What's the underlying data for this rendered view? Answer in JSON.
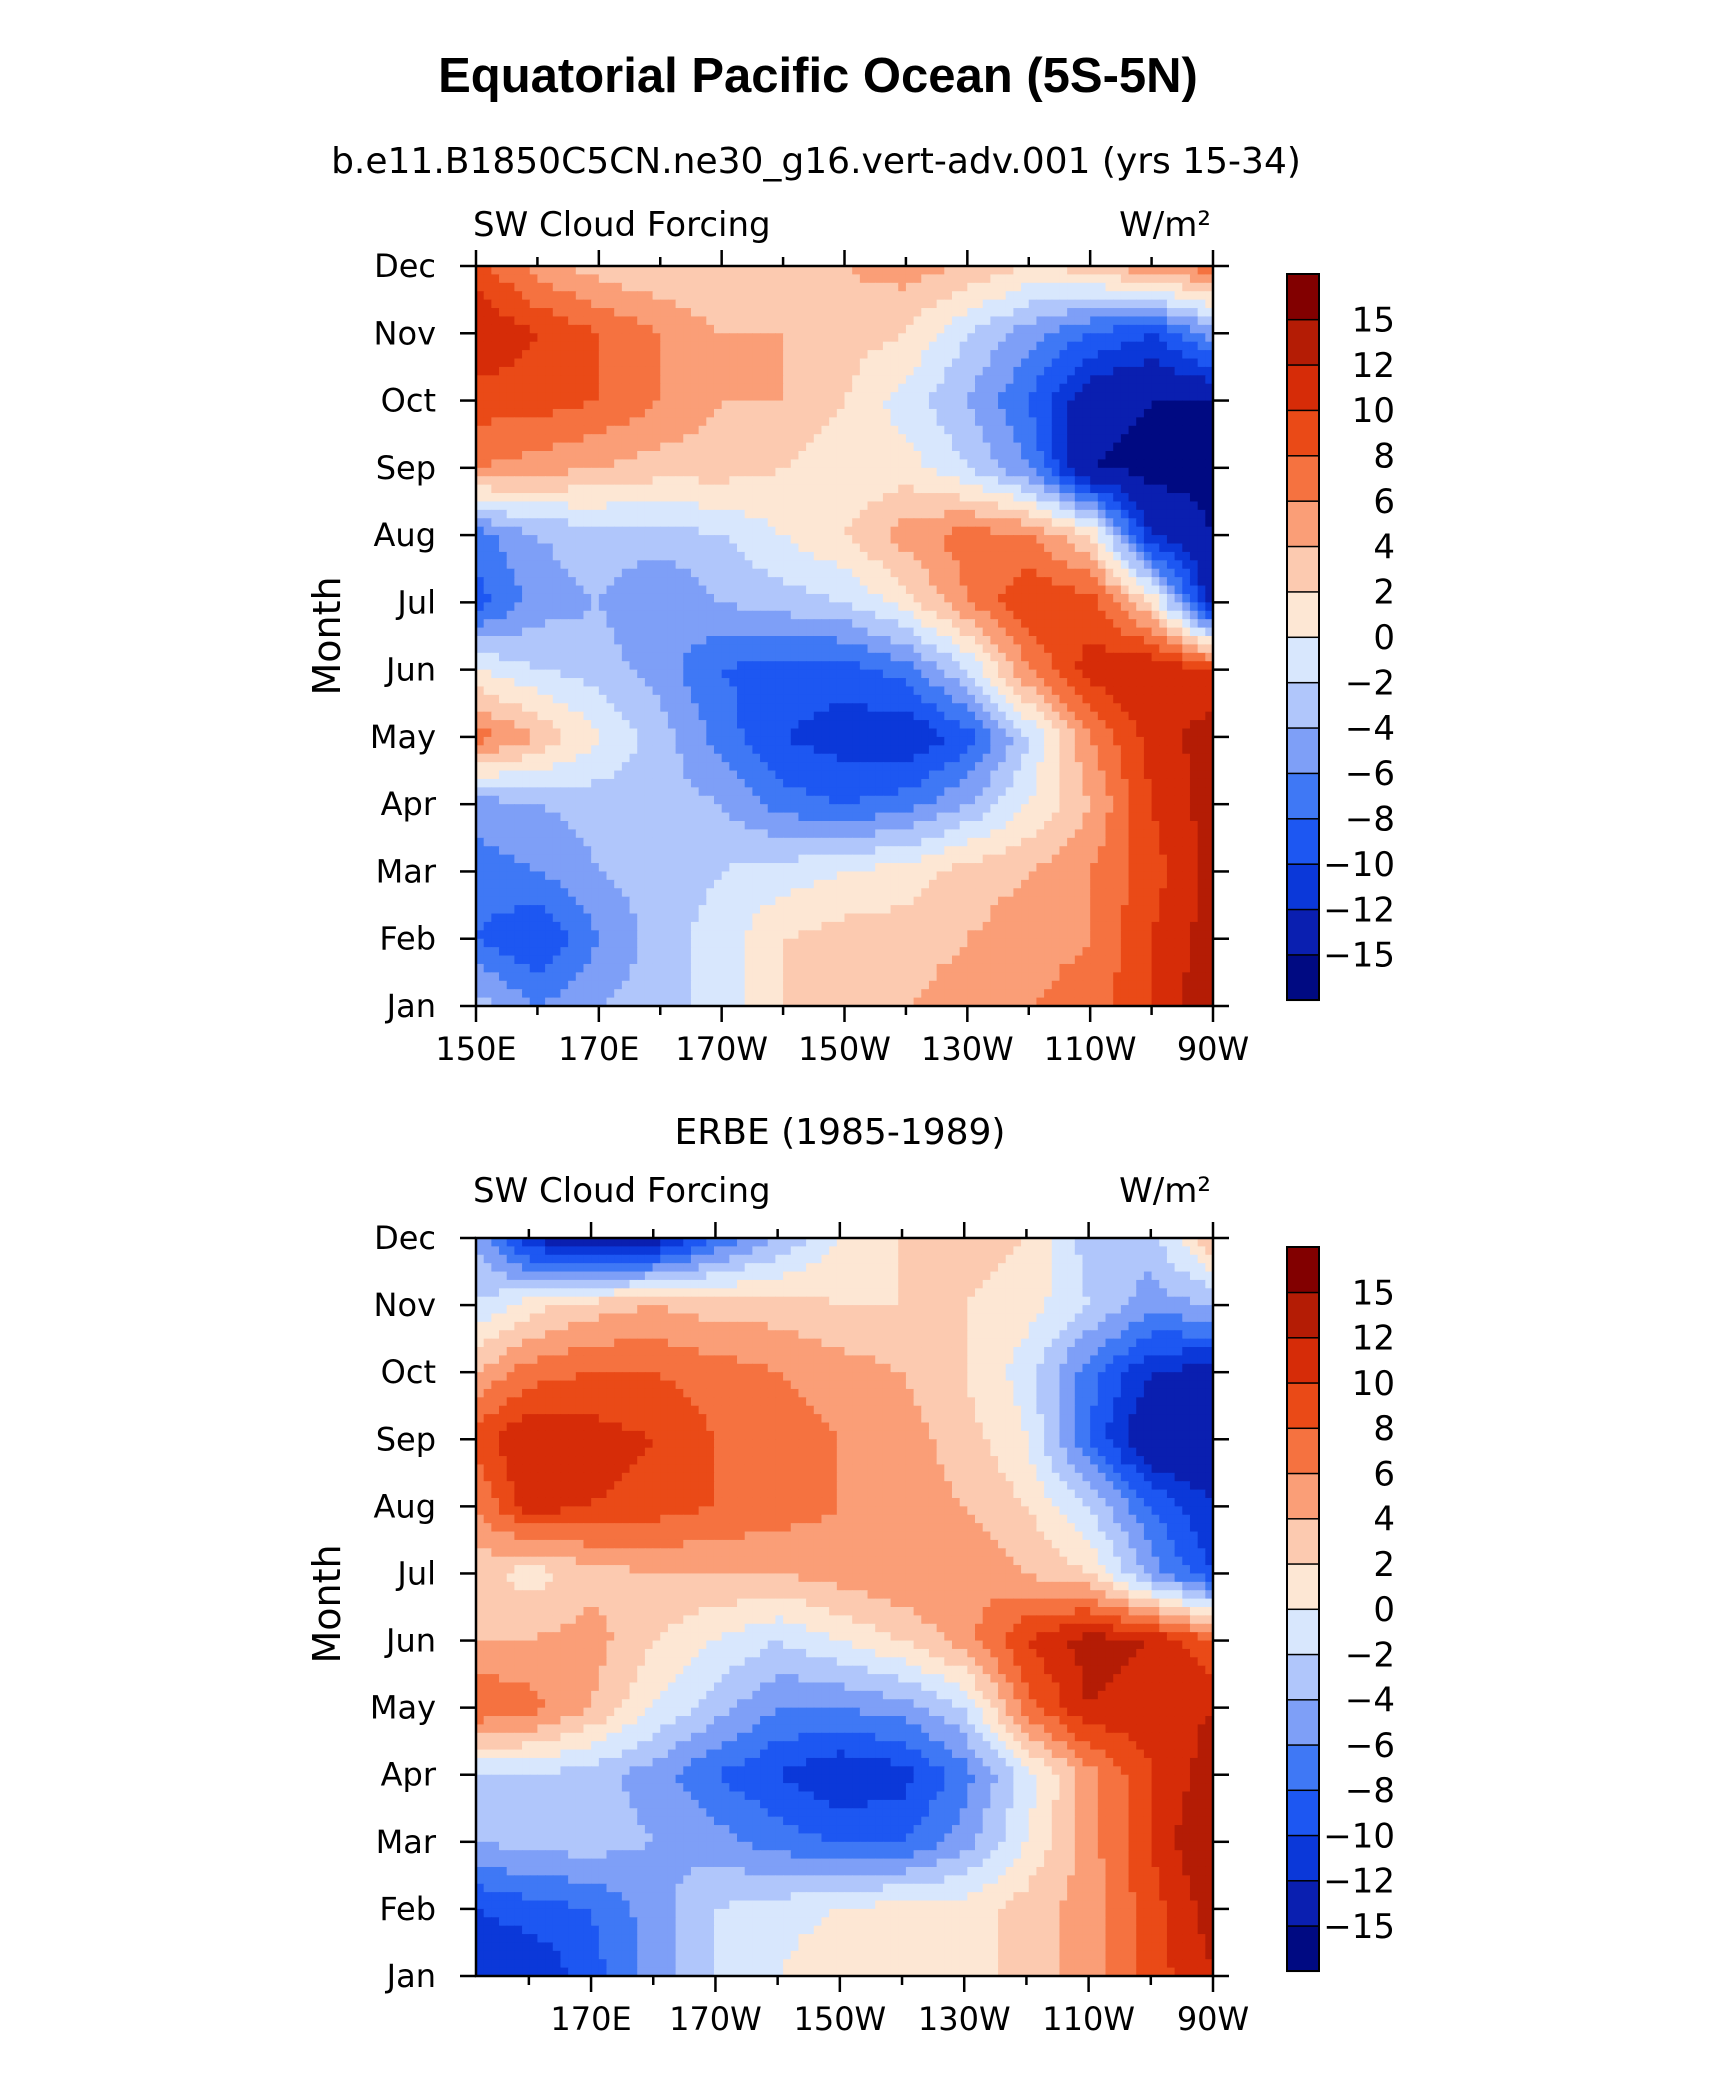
{
  "figure": {
    "title": "Equatorial Pacific Ocean (5S-5N)"
  },
  "palette": {
    "levels": [
      "-15",
      "-12",
      "-10",
      "-8",
      "-6",
      "-4",
      "-2",
      "0",
      "2",
      "4",
      "6",
      "8",
      "10",
      "12",
      "15"
    ],
    "colors": [
      "#000a82",
      "#0a1fb0",
      "#0b38d9",
      "#1d57f2",
      "#3f78f5",
      "#7e9ff7",
      "#b0c6fb",
      "#d8e7fd",
      "#fde7d4",
      "#fccab0",
      "#fa9e77",
      "#f57240",
      "#ea4a17",
      "#d62c08",
      "#b41c05",
      "#820000"
    ]
  },
  "chart_data": [
    {
      "type": "heatmap",
      "name": "model",
      "subtitle": "b.e11.B1850C5CN.ne30_g16.vert-adv.001 (yrs 15-34)",
      "left_label": "SW Cloud Forcing",
      "right_label": "W/m²",
      "ylabel": "Month",
      "xlabel": "",
      "x_tick_labels": [
        "150E",
        "170E",
        "170W",
        "150W",
        "130W",
        "110W",
        "90W"
      ],
      "y_tick_labels": [
        "Jan",
        "Feb",
        "Mar",
        "Apr",
        "May",
        "Jun",
        "Jul",
        "Aug",
        "Sep",
        "Oct",
        "Nov",
        "Dec"
      ],
      "x_range_deg_east": [
        150,
        270
      ],
      "colorbar_levels": [
        "-15",
        "-12",
        "-10",
        "-8",
        "-6",
        "-4",
        "-2",
        "0",
        "2",
        "4",
        "6",
        "8",
        "10",
        "12",
        "15"
      ],
      "x": [
        150,
        160,
        170,
        180,
        190,
        200,
        210,
        220,
        230,
        240,
        250,
        260,
        270
      ],
      "y": [
        "Jan",
        "Feb",
        "Mar",
        "Apr",
        "May",
        "Jun",
        "Jul",
        "Aug",
        "Sep",
        "Oct",
        "Nov",
        "Dec"
      ],
      "z": [
        [
          -3,
          -6,
          -4,
          -3,
          -1,
          2,
          3,
          4,
          5,
          6,
          7,
          10,
          14
        ],
        [
          -8,
          -10,
          -6,
          -3,
          -1,
          2,
          3,
          3,
          4,
          5,
          6,
          10,
          13
        ],
        [
          -7,
          -6,
          -4,
          -3,
          -2,
          -1,
          0,
          1,
          3,
          4,
          6,
          9,
          13
        ],
        [
          -5,
          -4,
          -3,
          -3,
          -4,
          -7,
          -8,
          -7,
          -4,
          0,
          4,
          10,
          13
        ],
        [
          7,
          4,
          0,
          -3,
          -7,
          -10,
          -11,
          -12,
          -9,
          -2,
          6,
          11,
          13
        ],
        [
          0,
          -2,
          -3,
          -5,
          -8,
          -9,
          -9,
          -7,
          -2,
          6,
          11,
          12,
          10
        ],
        [
          -9,
          -5,
          -4,
          -6,
          -4,
          -3,
          -2,
          1,
          6,
          10,
          9,
          2,
          -14
        ],
        [
          -7,
          -4,
          -3,
          -3,
          -2,
          0,
          2,
          5,
          7,
          6,
          2,
          -12,
          -15
        ],
        [
          6,
          5,
          4,
          3,
          3,
          2,
          0,
          1,
          -2,
          -6,
          -15,
          -16,
          -16
        ],
        [
          9,
          9,
          8,
          6,
          4,
          4,
          2,
          -1,
          -4,
          -8,
          -14,
          -15,
          -15
        ],
        [
          12,
          10,
          8,
          6,
          4,
          4,
          3,
          2,
          -2,
          -5,
          -8,
          -10,
          -5
        ],
        [
          9,
          5,
          3,
          2,
          2,
          3,
          4,
          5,
          4,
          2,
          3,
          6,
          7
        ]
      ]
    },
    {
      "type": "heatmap",
      "name": "obs",
      "subtitle": "ERBE (1985-1989)",
      "left_label": "SW Cloud Forcing",
      "right_label": "W/m²",
      "ylabel": "Month",
      "xlabel": "",
      "x_tick_labels": [
        "170E",
        "170W",
        "150W",
        "130W",
        "110W",
        "90W"
      ],
      "y_tick_labels": [
        "Jan",
        "Feb",
        "Mar",
        "Apr",
        "May",
        "Jun",
        "Jul",
        "Aug",
        "Sep",
        "Oct",
        "Nov",
        "Dec"
      ],
      "x_range_deg_east": [
        151.5,
        270
      ],
      "colorbar_levels": [
        "-15",
        "-12",
        "-10",
        "-8",
        "-6",
        "-4",
        "-2",
        "0",
        "2",
        "4",
        "6",
        "8",
        "10",
        "12",
        "15"
      ],
      "x": [
        151.5,
        160,
        170,
        180,
        190,
        200,
        210,
        220,
        230,
        240,
        250,
        260,
        270
      ],
      "y": [
        "Jan",
        "Feb",
        "Mar",
        "Apr",
        "May",
        "Jun",
        "Jul",
        "Aug",
        "Sep",
        "Oct",
        "Nov",
        "Dec"
      ],
      "z": [
        [
          -12,
          -12,
          -9,
          -5,
          -2,
          0,
          2,
          2,
          1,
          3,
          5,
          9,
          12
        ],
        [
          -10,
          -9,
          -8,
          -5,
          -2,
          -1,
          0,
          1,
          1,
          3,
          5,
          9,
          13
        ],
        [
          -4,
          -3,
          -3,
          -4,
          -5,
          -7,
          -8,
          -8,
          -5,
          0,
          5,
          10,
          15
        ],
        [
          -2,
          -2,
          -3,
          -5,
          -8,
          -10,
          -12,
          -11,
          -7,
          -1,
          5,
          10,
          13
        ],
        [
          8,
          7,
          4,
          0,
          -3,
          -6,
          -6,
          -5,
          -2,
          7,
          12,
          11,
          12
        ],
        [
          4,
          4,
          5,
          2,
          0,
          -2,
          0,
          2,
          5,
          10,
          13,
          12,
          8
        ],
        [
          3,
          1,
          3,
          4,
          4,
          4,
          5,
          6,
          6,
          4,
          2,
          -5,
          -10
        ],
        [
          6,
          11,
          10,
          9,
          8,
          7,
          6,
          5,
          4,
          2,
          -2,
          -8,
          -12
        ],
        [
          9,
          12,
          11,
          10,
          8,
          7,
          6,
          5,
          3,
          0,
          -8,
          -15,
          -15
        ],
        [
          4,
          7,
          8,
          8,
          7,
          6,
          5,
          4,
          2,
          -1,
          -7,
          -12,
          -13
        ],
        [
          -2,
          1,
          3,
          4,
          3,
          3,
          2,
          2,
          2,
          1,
          -2,
          -5,
          -4
        ],
        [
          -4,
          -12,
          -15,
          -14,
          -8,
          -4,
          0,
          2,
          3,
          2,
          -3,
          -3,
          4
        ]
      ]
    }
  ]
}
